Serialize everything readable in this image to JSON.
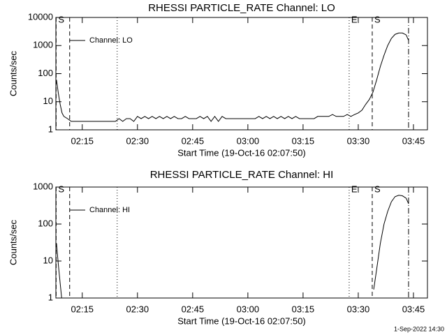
{
  "chart_data": [
    {
      "type": "line",
      "title": "RHESSI PARTICLE_RATE Channel: LO",
      "xlabel": "Start Time (19-Oct-16 02:07:50)",
      "ylabel": "Counts/sec",
      "log_y": true,
      "legend": "upper left",
      "xlim": [
        127.83,
        228.8
      ],
      "ylim": [
        1,
        10000
      ],
      "xticks": [
        {
          "value": 135,
          "label": "02:15"
        },
        {
          "value": 150,
          "label": "02:30"
        },
        {
          "value": 165,
          "label": "02:45"
        },
        {
          "value": 180,
          "label": "03:00"
        },
        {
          "value": 195,
          "label": "03:15"
        },
        {
          "value": 210,
          "label": "03:30"
        },
        {
          "value": 225,
          "label": "03:45"
        }
      ],
      "yticks": [
        1,
        10,
        100,
        1000,
        10000
      ],
      "x": [
        128,
        128.5,
        129,
        129.5,
        130,
        131,
        132,
        133,
        134,
        135,
        136,
        137,
        138,
        139,
        140,
        141,
        142,
        143,
        144,
        145,
        146,
        147,
        148,
        149,
        150,
        151,
        152,
        153,
        154,
        155,
        156,
        157,
        158,
        159,
        160,
        161,
        162,
        163,
        164,
        165,
        166,
        167,
        168,
        169,
        170,
        171,
        172,
        173,
        174,
        175,
        176,
        177,
        178,
        179,
        180,
        181,
        182,
        183,
        184,
        185,
        186,
        187,
        188,
        189,
        190,
        191,
        192,
        193,
        194,
        195,
        196,
        197,
        198,
        199,
        200,
        201,
        202,
        203,
        204,
        205,
        206,
        207,
        208,
        209,
        210,
        211,
        212,
        213,
        214,
        215,
        216,
        217,
        218,
        219,
        220,
        221,
        222,
        223,
        223.7
      ],
      "series": [
        {
          "name": "Channel: LO",
          "color": "#000000",
          "values": [
            60,
            20,
            8,
            4,
            3,
            2.5,
            2,
            2,
            2,
            2,
            2,
            2,
            2,
            2,
            2,
            2,
            2,
            2,
            2,
            2.5,
            2,
            2.5,
            2.5,
            2,
            3,
            2.5,
            3,
            2.5,
            3,
            2.5,
            3,
            2.5,
            3,
            2.5,
            3,
            2.5,
            2.5,
            3,
            2.5,
            2.5,
            2.5,
            3,
            2.5,
            3,
            2,
            3,
            2,
            3,
            2.5,
            2.5,
            2.5,
            2.5,
            2.5,
            2.5,
            2.5,
            2.5,
            2.5,
            3,
            2.5,
            3,
            2.5,
            3,
            2.5,
            3,
            2.5,
            3,
            2.5,
            3,
            2.5,
            2.5,
            2.5,
            2.5,
            2.5,
            3,
            3,
            3,
            3,
            3.5,
            3,
            3,
            3,
            3.5,
            3,
            3.5,
            4,
            5,
            8,
            12,
            22,
            60,
            180,
            450,
            1000,
            1800,
            2500,
            2800,
            2800,
            2400,
            1500
          ]
        }
      ],
      "markers": [
        {
          "x": 127.9,
          "style": "dashed",
          "label": "S"
        },
        {
          "x": 131.58,
          "style": "dashed"
        },
        {
          "x": 144.49,
          "style": "dotted"
        },
        {
          "x": 207.53,
          "style": "dotted",
          "label": "E"
        },
        {
          "x": 213.8,
          "style": "dashed",
          "label": "S"
        },
        {
          "x": 223.67,
          "style": "dashdot"
        }
      ]
    },
    {
      "type": "line",
      "title": "RHESSI PARTICLE_RATE Channel: HI",
      "xlabel": "Start Time (19-Oct-16 02:07:50)",
      "ylabel": "Counts/sec",
      "log_y": true,
      "legend": "upper left",
      "xlim": [
        127.83,
        228.8
      ],
      "ylim": [
        1,
        1000
      ],
      "xticks": [
        {
          "value": 135,
          "label": "02:15"
        },
        {
          "value": 150,
          "label": "02:30"
        },
        {
          "value": 165,
          "label": "02:45"
        },
        {
          "value": 180,
          "label": "03:00"
        },
        {
          "value": 195,
          "label": "03:15"
        },
        {
          "value": 210,
          "label": "03:30"
        },
        {
          "value": 225,
          "label": "03:45"
        }
      ],
      "yticks": [
        1,
        10,
        100,
        1000
      ],
      "x": [
        128,
        128.5,
        129,
        129.4,
        170,
        214.2,
        215,
        216,
        217,
        218,
        219,
        220,
        221,
        222,
        223,
        223.7
      ],
      "series": [
        {
          "name": "Channel: HI",
          "color": "#000000",
          "values": [
            30,
            8,
            2.5,
            1,
            null,
            1.7,
            6,
            30,
            100,
            220,
            400,
            550,
            600,
            580,
            500,
            350
          ]
        }
      ],
      "markers": [
        {
          "x": 127.9,
          "style": "dashed",
          "label": "S"
        },
        {
          "x": 131.58,
          "style": "dashed"
        },
        {
          "x": 144.49,
          "style": "dotted"
        },
        {
          "x": 207.53,
          "style": "dotted",
          "label": "E"
        },
        {
          "x": 213.8,
          "style": "dashed",
          "label": "S"
        },
        {
          "x": 223.67,
          "style": "dashdot"
        }
      ]
    }
  ],
  "footer": {
    "timestamp": "1-Sep-2022 14:30"
  }
}
